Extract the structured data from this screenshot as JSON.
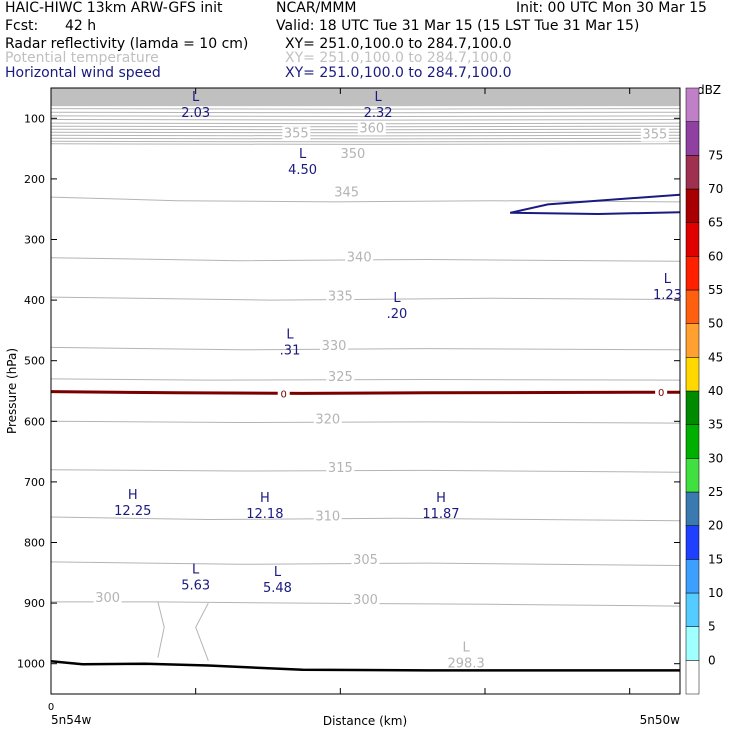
{
  "header": {
    "model": "HAIC-HIWC 13km ARW-GFS init",
    "org": "NCAR/MMM",
    "init": "Init: 00 UTC Mon 30 Mar 15",
    "fcst_label": "Fcst:",
    "fcst_value": "42 h",
    "valid": "Valid: 18 UTC Tue 31 Mar 15 (15 LST Tue 31 Mar 15)",
    "fields": [
      {
        "name": "Radar reflectivity (lamda = 10 cm)",
        "xy": "XY= 251.0,100.0 to 284.7,100.0",
        "color": "#000000"
      },
      {
        "name": "Potential temperature",
        "xy": "XY= 251.0,100.0 to 284.7,100.0",
        "color": "#c0c0c0"
      },
      {
        "name": "Horizontal wind speed",
        "xy": "XY= 251.0,100.0 to 284.7,100.0",
        "color": "#1a1a80"
      }
    ]
  },
  "chart_data": {
    "type": "cross-section",
    "ylabel": "Pressure (hPa)",
    "xlabel": "Distance (km)",
    "y_ticks": [
      100,
      200,
      300,
      400,
      500,
      600,
      700,
      800,
      900,
      1000
    ],
    "ylim": [
      1050,
      50
    ],
    "x_start_tick": "0",
    "x_left_label": "5n54w",
    "x_right_label": "5n50w",
    "theta_labels": [
      {
        "text": "360",
        "d": 0.51,
        "p": 120
      },
      {
        "text": "355",
        "d": 0.39,
        "p": 128
      },
      {
        "text": "355",
        "d": 0.96,
        "p": 130
      },
      {
        "text": "350",
        "d": 0.48,
        "p": 162
      },
      {
        "text": "345",
        "d": 0.47,
        "p": 226
      },
      {
        "text": "340",
        "d": 0.49,
        "p": 333
      },
      {
        "text": "335",
        "d": 0.46,
        "p": 397
      },
      {
        "text": "330",
        "d": 0.45,
        "p": 479
      },
      {
        "text": "325",
        "d": 0.46,
        "p": 530
      },
      {
        "text": "320",
        "d": 0.44,
        "p": 600
      },
      {
        "text": "315",
        "d": 0.46,
        "p": 680
      },
      {
        "text": "310",
        "d": 0.44,
        "p": 760
      },
      {
        "text": "305",
        "d": 0.5,
        "p": 832
      },
      {
        "text": "300",
        "d": 0.09,
        "p": 895
      },
      {
        "text": "300",
        "d": 0.5,
        "p": 898
      }
    ],
    "wind_extrema": [
      {
        "type": "L",
        "value": "2.03",
        "d": 0.23,
        "p": 78
      },
      {
        "type": "L",
        "value": "2.32",
        "d": 0.52,
        "p": 78
      },
      {
        "type": "L",
        "value": "4.50",
        "d": 0.4,
        "p": 172
      },
      {
        "type": "L",
        "value": "1.23",
        "d": 0.98,
        "p": 378
      },
      {
        "type": "L",
        "value": ".20",
        "d": 0.55,
        "p": 410
      },
      {
        "type": "L",
        "value": ".31",
        "d": 0.38,
        "p": 470
      },
      {
        "type": "H",
        "value": "12.25",
        "d": 0.13,
        "p": 735
      },
      {
        "type": "H",
        "value": "12.18",
        "d": 0.34,
        "p": 740
      },
      {
        "type": "H",
        "value": "11.87",
        "d": 0.62,
        "p": 740
      },
      {
        "type": "L",
        "value": "5.63",
        "d": 0.23,
        "p": 858
      },
      {
        "type": "L",
        "value": "5.48",
        "d": 0.36,
        "p": 862
      }
    ],
    "theta_min": {
      "type": "L",
      "value": "298.3",
      "d": 0.66,
      "p": 990
    },
    "reflectivity_contour_label": "0",
    "colorbar": {
      "title": "dBZ",
      "levels": [
        "0",
        "5",
        "10",
        "15",
        "20",
        "25",
        "30",
        "35",
        "40",
        "45",
        "50",
        "55",
        "60",
        "65",
        "70",
        "75"
      ],
      "colors": [
        "#ffffff",
        "#a0ffff",
        "#55ccff",
        "#3da0ff",
        "#2040ff",
        "#3a7ab0",
        "#40e040",
        "#00b000",
        "#008a00",
        "#ffd800",
        "#ffa030",
        "#ff6010",
        "#ff2000",
        "#e00000",
        "#a80000",
        "#a03050",
        "#9040a0",
        "#c080c8"
      ]
    },
    "colors": {
      "theta": "#b4b4b4",
      "wind": "#1a1a80",
      "reflectivity_zero": "#7a0000",
      "terrain": "#000000",
      "top_shade": "#c0c0c0"
    }
  }
}
